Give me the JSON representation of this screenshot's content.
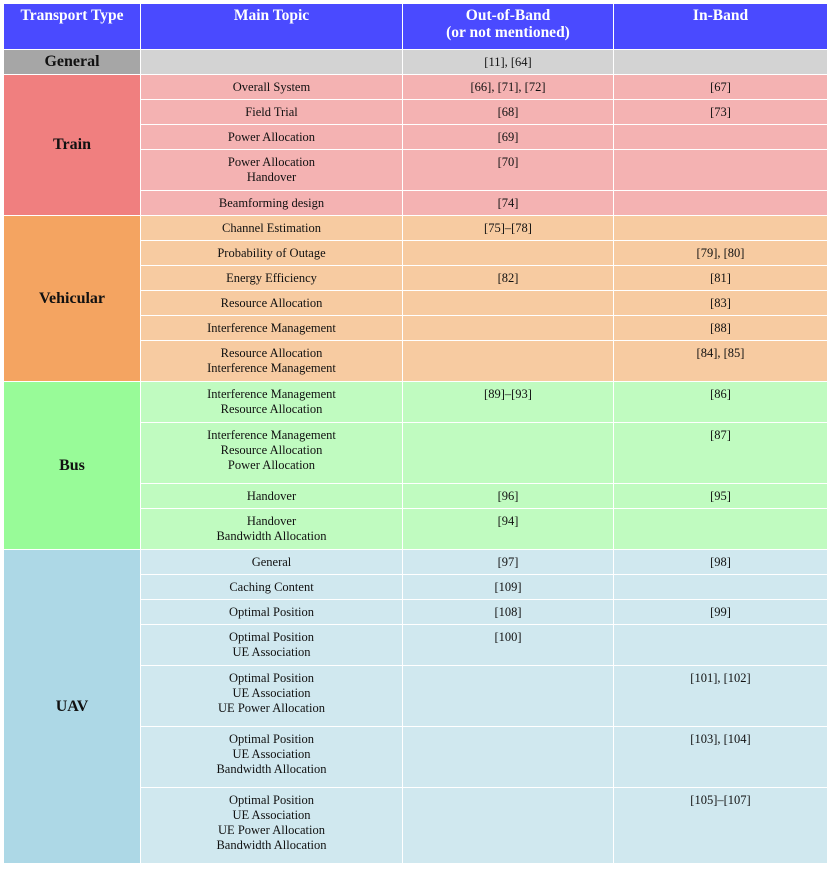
{
  "header": {
    "transport_type": "Transport Type",
    "main_topic": "Main Topic",
    "out_of_band_line1": "Out-of-Band",
    "out_of_band_line2": "(or not mentioned)",
    "in_band": "In-Band"
  },
  "general": {
    "label": "General",
    "main_topic": "",
    "out_of_band": "[11], [64]",
    "in_band": ""
  },
  "groups": [
    {
      "name": "Train",
      "rows": [
        {
          "topic": [
            "Overall System"
          ],
          "out": "[66], [71], [72]",
          "in": "[67]"
        },
        {
          "topic": [
            "Field Trial"
          ],
          "out": "[68]",
          "in": "[73]"
        },
        {
          "topic": [
            "Power Allocation"
          ],
          "out": "[69]",
          "in": ""
        },
        {
          "topic": [
            "Power Allocation",
            "Handover"
          ],
          "out": "[70]",
          "in": ""
        },
        {
          "topic": [
            "Beamforming design"
          ],
          "out": "[74]",
          "in": ""
        }
      ]
    },
    {
      "name": "Vehicular",
      "rows": [
        {
          "topic": [
            "Channel Estimation"
          ],
          "out": "[75]–[78]",
          "in": ""
        },
        {
          "topic": [
            "Probability of Outage"
          ],
          "out": "",
          "in": "[79], [80]"
        },
        {
          "topic": [
            "Energy Efficiency"
          ],
          "out": "[82]",
          "in": "[81]"
        },
        {
          "topic": [
            "Resource Allocation"
          ],
          "out": "",
          "in": "[83]"
        },
        {
          "topic": [
            "Interference Management"
          ],
          "out": "",
          "in": "[88]"
        },
        {
          "topic": [
            "Resource Allocation",
            "Interference Management"
          ],
          "out": "",
          "in": "[84], [85]"
        }
      ]
    },
    {
      "name": "Bus",
      "rows": [
        {
          "topic": [
            "Interference Management",
            "Resource Allocation"
          ],
          "out": "[89]–[93]",
          "in": "[86]"
        },
        {
          "topic": [
            "Interference Management",
            "Resource Allocation",
            "Power Allocation"
          ],
          "out": "",
          "in": "[87]"
        },
        {
          "topic": [
            "Handover"
          ],
          "out": "[96]",
          "in": "[95]"
        },
        {
          "topic": [
            "Handover",
            "Bandwidth Allocation"
          ],
          "out": "[94]",
          "in": ""
        }
      ]
    },
    {
      "name": "UAV",
      "rows": [
        {
          "topic": [
            "General"
          ],
          "out": "[97]",
          "in": "[98]"
        },
        {
          "topic": [
            "Caching Content"
          ],
          "out": "[109]",
          "in": ""
        },
        {
          "topic": [
            "Optimal Position"
          ],
          "out": "[108]",
          "in": "[99]"
        },
        {
          "topic": [
            "Optimal Position",
            "UE Association"
          ],
          "out": "[100]",
          "in": ""
        },
        {
          "topic": [
            "Optimal Position",
            "UE Association",
            "UE Power Allocation"
          ],
          "out": "",
          "in": "[101], [102]"
        },
        {
          "topic": [
            "Optimal Position",
            "UE Association",
            "Bandwidth Allocation"
          ],
          "out": "",
          "in": "[103], [104]"
        },
        {
          "topic": [
            "Optimal Position",
            "UE Association",
            "UE Power Allocation",
            "Bandwidth Allocation"
          ],
          "out": "",
          "in": "[105]–[107]"
        }
      ]
    }
  ],
  "colors": {
    "header": "#4a4aff",
    "general_group": "#a6a6a6",
    "general_row": "#d3d3d3",
    "train_group": "#f07f7f",
    "train_row": "#f4b2b2",
    "vehicular_group": "#f4a461",
    "vehicular_row": "#f7cba1",
    "bus_group": "#98fb98",
    "bus_row": "#c0fbc0",
    "uav_group": "#add8e6",
    "uav_row": "#d0e8ef"
  }
}
